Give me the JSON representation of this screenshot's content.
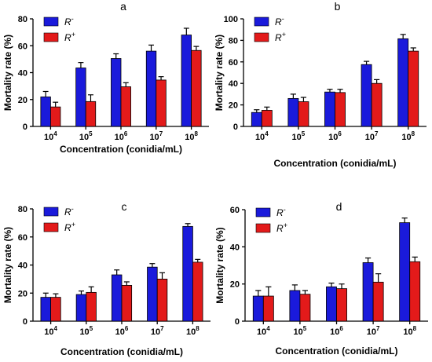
{
  "chart_data": [
    {
      "type": "bar",
      "panel_label": "a",
      "categories": [
        "10^4",
        "10^5",
        "10^6",
        "10^7",
        "10^8"
      ],
      "ylabel": "Mortality  rate (%)",
      "xlabel": "Concentration (conidia/mL)",
      "ylim": [
        0,
        80
      ],
      "yticks": [
        0,
        20,
        40,
        60,
        80
      ],
      "legend_position": "top-left",
      "series": [
        {
          "name": "R -",
          "color": "#1a1adb",
          "values": [
            22,
            43.5,
            50.5,
            56,
            68
          ],
          "errors": [
            4,
            4,
            3.5,
            4.5,
            5
          ]
        },
        {
          "name": "R +",
          "color": "#e31a1a",
          "values": [
            14.5,
            18.5,
            29.5,
            34.5,
            56.5
          ],
          "errors": [
            3.5,
            5,
            3,
            2.5,
            3
          ]
        }
      ]
    },
    {
      "type": "bar",
      "panel_label": "b",
      "categories": [
        "10^4",
        "10^5",
        "10^6",
        "10^7",
        "10^8"
      ],
      "ylabel": "Mortality  rate (%)",
      "xlabel": "Concentration (conidia/mL)",
      "ylim": [
        0,
        100
      ],
      "yticks": [
        0,
        20,
        40,
        60,
        80,
        100
      ],
      "legend_position": "top-left",
      "series": [
        {
          "name": "R -",
          "color": "#1a1adb",
          "values": [
            13,
            26,
            32,
            57.5,
            81.5
          ],
          "errors": [
            2.5,
            4,
            2.5,
            3,
            4
          ]
        },
        {
          "name": "R +",
          "color": "#e31a1a",
          "values": [
            15,
            23,
            31.5,
            40,
            70
          ],
          "errors": [
            3,
            4,
            3,
            3.5,
            3
          ]
        }
      ]
    },
    {
      "type": "bar",
      "panel_label": "c",
      "categories": [
        "10^4",
        "10^5",
        "10^6",
        "10^7",
        "10^8"
      ],
      "ylabel": "Mortality  rate (%)",
      "xlabel": "Concentration (conidia/mL)",
      "ylim": [
        0,
        80
      ],
      "yticks": [
        0,
        20,
        40,
        60,
        80
      ],
      "legend_position": "top-left",
      "series": [
        {
          "name": "R -",
          "color": "#1a1adb",
          "values": [
            17,
            19,
            33,
            38.5,
            67.5
          ],
          "errors": [
            3,
            2.5,
            3.5,
            2.5,
            2
          ]
        },
        {
          "name": "R +",
          "color": "#e31a1a",
          "values": [
            17,
            20.5,
            25.5,
            30,
            42
          ],
          "errors": [
            2.5,
            4,
            2.5,
            4.5,
            2
          ]
        }
      ]
    },
    {
      "type": "bar",
      "panel_label": "d",
      "categories": [
        "10^4",
        "10^5",
        "10^6",
        "10^7",
        "10^8"
      ],
      "ylabel": "Mortality  rate (%)",
      "xlabel": "Concentration (conidia/mL)",
      "ylim": [
        0,
        60
      ],
      "yticks": [
        0,
        20,
        40,
        60
      ],
      "legend_position": "top-left",
      "series": [
        {
          "name": "R -",
          "color": "#1a1adb",
          "values": [
            13.5,
            16.5,
            18.5,
            31.5,
            53
          ],
          "errors": [
            3,
            3,
            2,
            2.5,
            2.5
          ]
        },
        {
          "name": "R +",
          "color": "#e31a1a",
          "values": [
            13.5,
            14.5,
            17.5,
            21,
            32
          ],
          "errors": [
            5,
            2,
            2.5,
            4.5,
            2.5
          ]
        }
      ]
    }
  ]
}
